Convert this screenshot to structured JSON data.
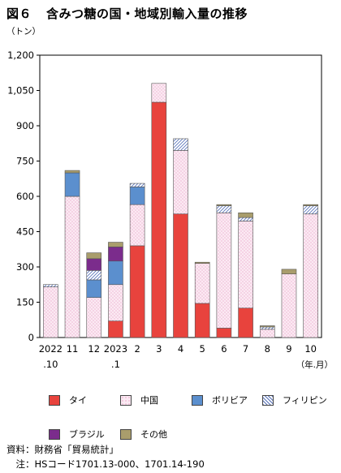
{
  "title": {
    "figure_no": "図６",
    "text": "含みつ糖の国・地域別輸入量の推移"
  },
  "chart_data": {
    "type": "bar",
    "stacked": true,
    "ylabel": "（トン）",
    "xlabel": "（年.月）",
    "ylim": [
      0,
      1200
    ],
    "yticks": [
      0,
      150,
      300,
      450,
      600,
      750,
      900,
      1050,
      1200
    ],
    "ytick_labels": [
      "0",
      "150",
      "300",
      "450",
      "600",
      "750",
      "900",
      "1,050",
      "1,200"
    ],
    "categories": [
      {
        "line1": "2022",
        "line2": ".10"
      },
      {
        "line1": "11",
        "line2": ""
      },
      {
        "line1": "12",
        "line2": ""
      },
      {
        "line1": "2023",
        "line2": ".1"
      },
      {
        "line1": "2",
        "line2": ""
      },
      {
        "line1": "3",
        "line2": ""
      },
      {
        "line1": "4",
        "line2": ""
      },
      {
        "line1": "5",
        "line2": ""
      },
      {
        "line1": "6",
        "line2": ""
      },
      {
        "line1": "7",
        "line2": ""
      },
      {
        "line1": "8",
        "line2": ""
      },
      {
        "line1": "9",
        "line2": ""
      },
      {
        "line1": "10",
        "line2": ""
      }
    ],
    "series": [
      {
        "name": "タイ",
        "color": "#e8433d",
        "pattern": "solid",
        "values": [
          0,
          0,
          0,
          70,
          390,
          1000,
          525,
          145,
          40,
          125,
          0,
          0,
          0
        ]
      },
      {
        "name": "中国",
        "color": "#fbeaf3",
        "pattern": "pink-dots",
        "values": [
          215,
          600,
          170,
          155,
          175,
          80,
          270,
          170,
          490,
          370,
          35,
          270,
          525
        ]
      },
      {
        "name": "ボリビア",
        "color": "#5b8fce",
        "pattern": "solid",
        "values": [
          0,
          100,
          75,
          100,
          75,
          0,
          0,
          0,
          0,
          0,
          0,
          0,
          0
        ]
      },
      {
        "name": "フィリピン",
        "color": "#ffffff",
        "pattern": "blue-hatch",
        "values": [
          10,
          0,
          40,
          0,
          15,
          0,
          50,
          0,
          30,
          15,
          10,
          0,
          35
        ]
      },
      {
        "name": "ブラジル",
        "color": "#7b2c8c",
        "pattern": "solid",
        "values": [
          0,
          0,
          50,
          60,
          0,
          0,
          0,
          0,
          0,
          0,
          0,
          0,
          0
        ]
      },
      {
        "name": "その他",
        "color": "#a99d6c",
        "pattern": "solid",
        "values": [
          0,
          10,
          25,
          20,
          0,
          0,
          0,
          5,
          5,
          20,
          5,
          20,
          5
        ]
      }
    ],
    "grid": false,
    "legend_position": "bottom"
  },
  "source": {
    "line1": "資料：財務省「貿易統計」",
    "line2": "　注：HSコード1701.13-000、1701.14-190"
  }
}
